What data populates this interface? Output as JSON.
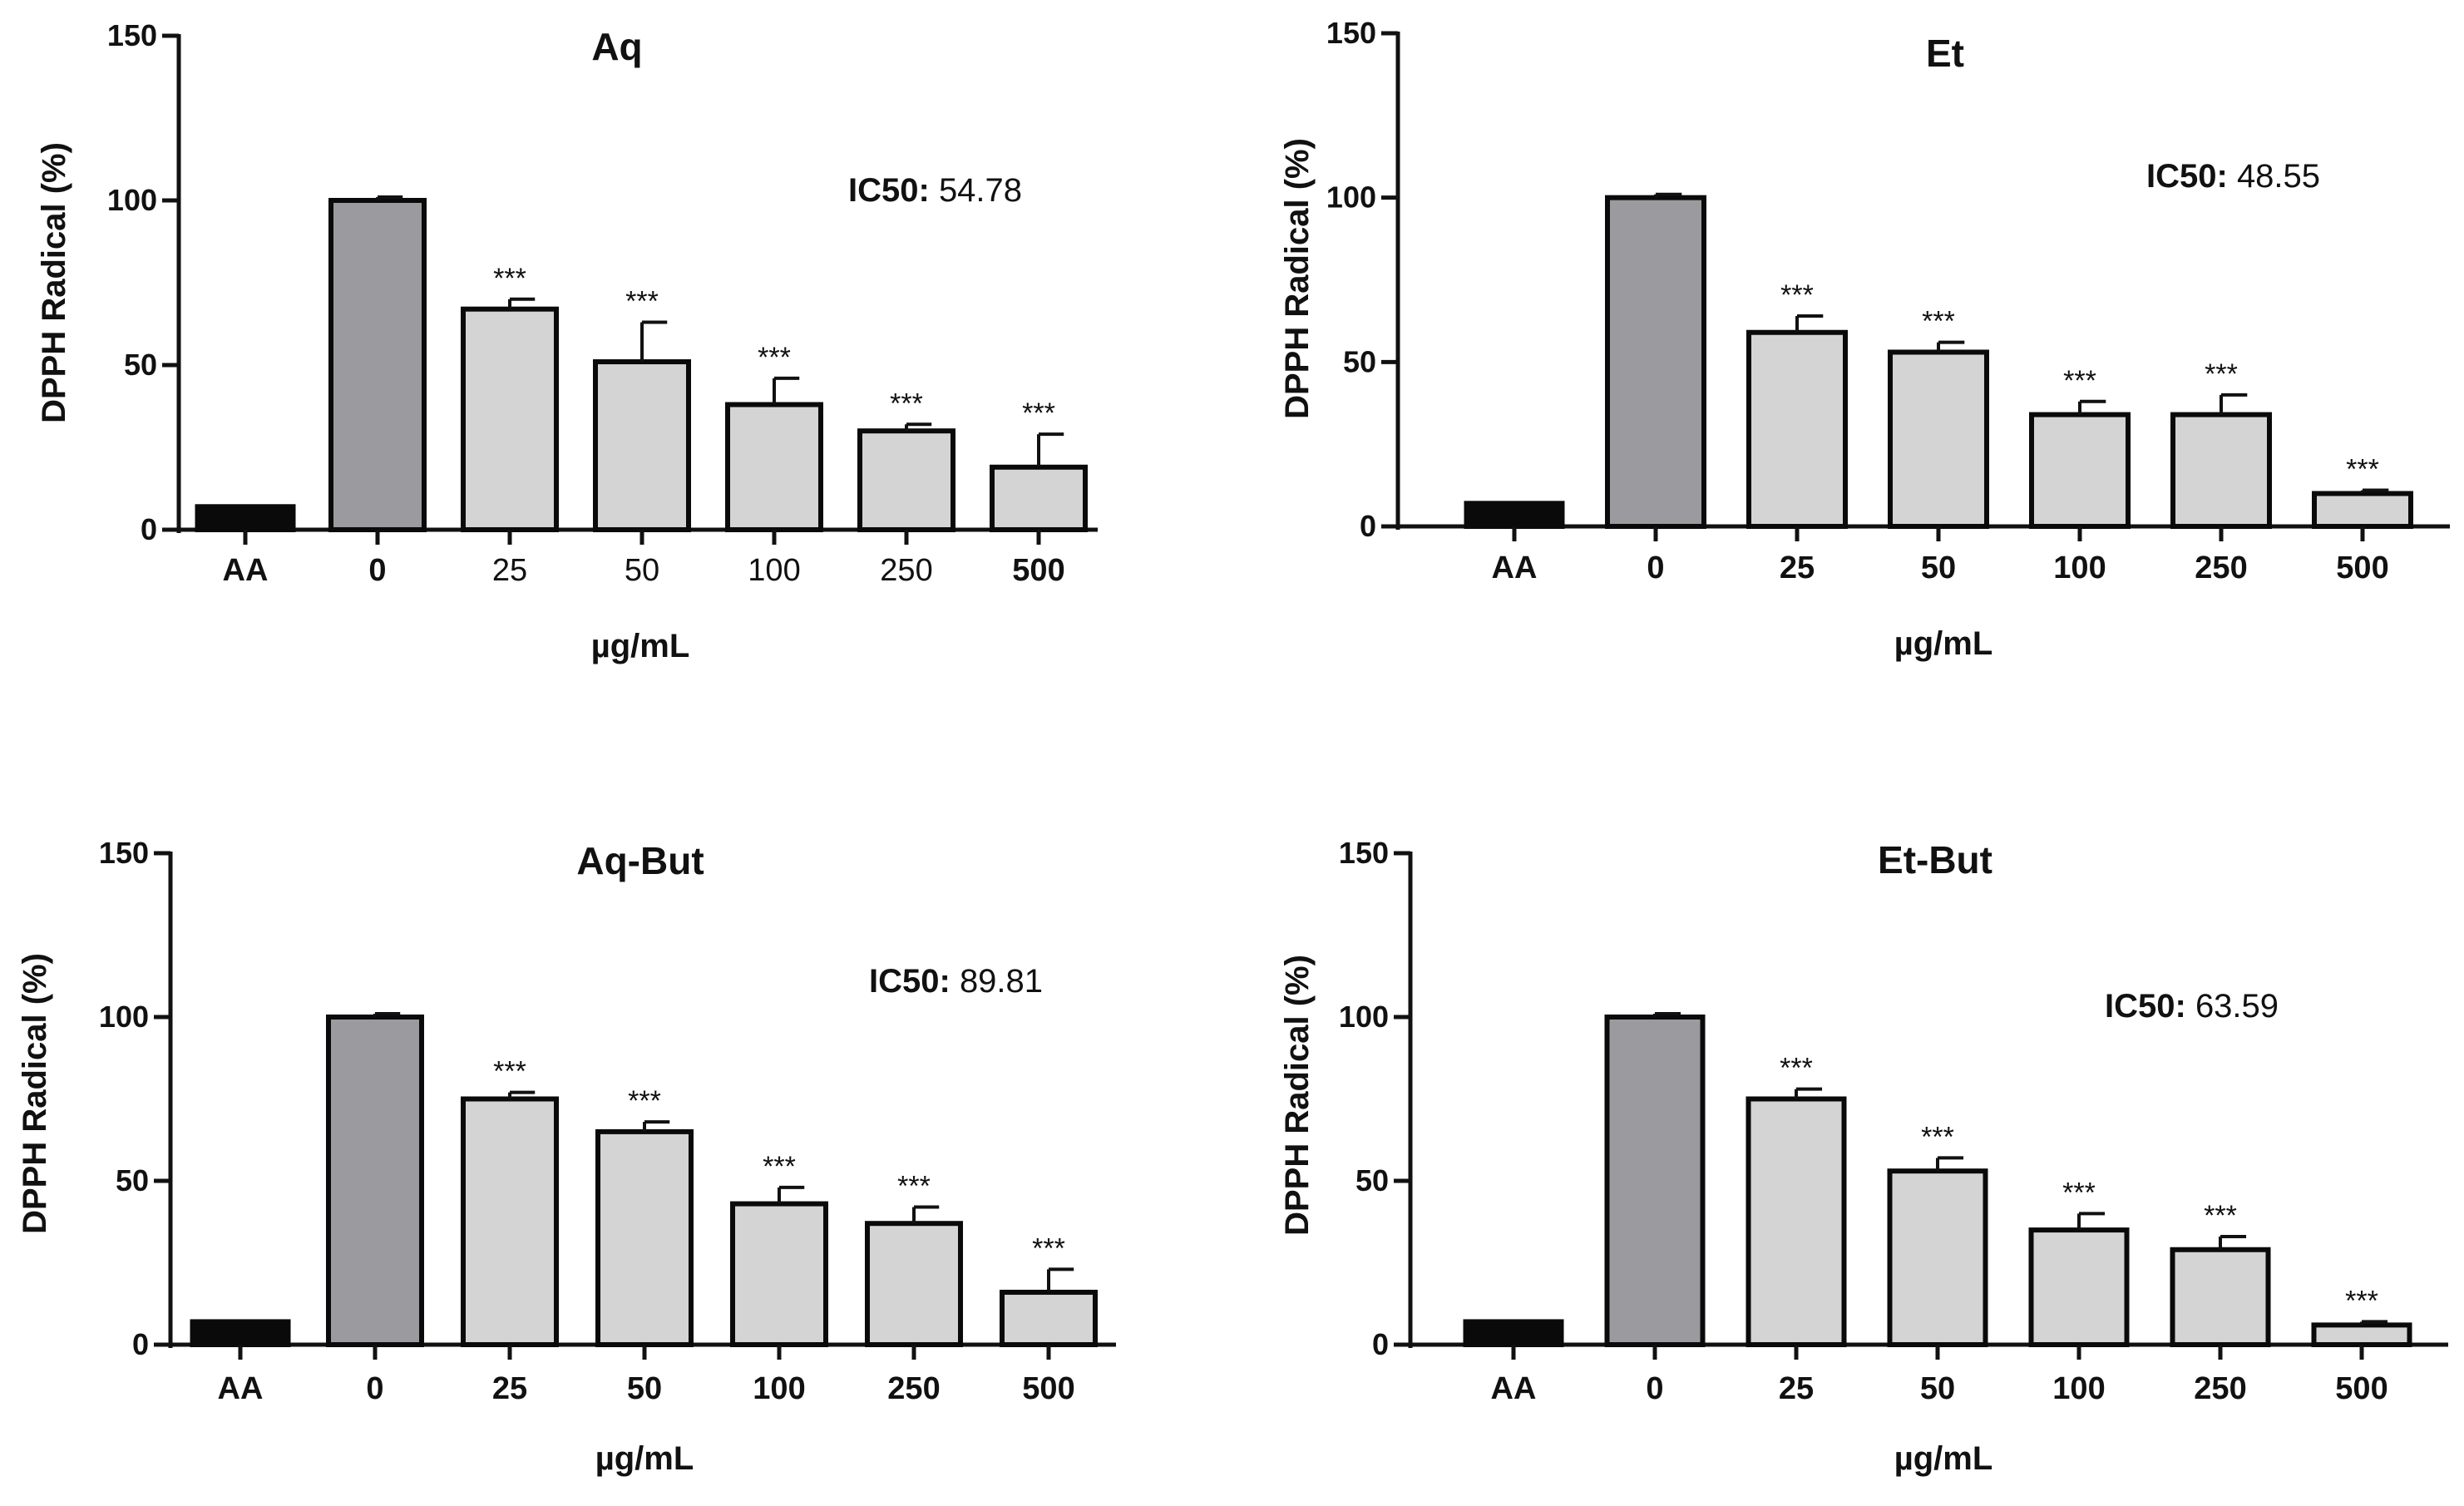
{
  "figure": {
    "ylabel": "DPPH Radical (%)",
    "xlabel": "µg/mL",
    "y_ticks": [
      0,
      50,
      100,
      150
    ],
    "ylim": [
      0,
      150
    ],
    "categories": [
      "AA",
      "0",
      "25",
      "50",
      "100",
      "250",
      "500"
    ],
    "bar_colors": [
      "#0a0a0a",
      "#9b9b9f",
      "#d4d4d4",
      "#d4d4d4",
      "#d4d4d4",
      "#d4d4d4",
      "#d4d4d4"
    ],
    "ic50_label": "IC50:"
  },
  "chart_data": [
    {
      "type": "bar",
      "title": "Aq",
      "xlabel": "µg/mL",
      "ylabel": "DPPH Radical (%)",
      "ylim": [
        0,
        150
      ],
      "categories": [
        "AA",
        "0",
        "25",
        "50",
        "100",
        "250",
        "500"
      ],
      "bold_ticks": [
        true,
        true,
        false,
        false,
        false,
        false,
        true
      ],
      "values": [
        7,
        100,
        67,
        51,
        38,
        30,
        19
      ],
      "errors": [
        0,
        1,
        3,
        12,
        8,
        2,
        10
      ],
      "significance": [
        "",
        "",
        "***",
        "***",
        "***",
        "***",
        "***"
      ],
      "ic50": "54.78"
    },
    {
      "type": "bar",
      "title": "Et",
      "xlabel": "µg/mL",
      "ylabel": "DPPH Radical (%)",
      "ylim": [
        0,
        150
      ],
      "categories": [
        "AA",
        "0",
        "25",
        "50",
        "100",
        "250",
        "500"
      ],
      "bold_ticks": [
        true,
        true,
        true,
        true,
        true,
        true,
        true
      ],
      "values": [
        7,
        100,
        59,
        53,
        34,
        34,
        10
      ],
      "errors": [
        0,
        1,
        5,
        3,
        4,
        6,
        1
      ],
      "significance": [
        "",
        "",
        "***",
        "***",
        "***",
        "***",
        "***"
      ],
      "ic50": "48.55"
    },
    {
      "type": "bar",
      "title": "Aq-But",
      "xlabel": "µg/mL",
      "ylabel": "DPPH Radical (%)",
      "ylim": [
        0,
        150
      ],
      "categories": [
        "AA",
        "0",
        "25",
        "50",
        "100",
        "250",
        "500"
      ],
      "bold_ticks": [
        true,
        true,
        true,
        true,
        true,
        true,
        true
      ],
      "values": [
        7,
        100,
        75,
        65,
        43,
        37,
        16
      ],
      "errors": [
        0,
        1,
        2,
        3,
        5,
        5,
        7
      ],
      "significance": [
        "",
        "",
        "***",
        "***",
        "***",
        "***",
        "***"
      ],
      "ic50": "89.81"
    },
    {
      "type": "bar",
      "title": "Et-But",
      "xlabel": "µg/mL",
      "ylabel": "DPPH Radical (%)",
      "ylim": [
        0,
        150
      ],
      "categories": [
        "AA",
        "0",
        "25",
        "50",
        "100",
        "250",
        "500"
      ],
      "bold_ticks": [
        true,
        true,
        true,
        true,
        true,
        true,
        true
      ],
      "values": [
        7,
        100,
        75,
        53,
        35,
        29,
        6
      ],
      "errors": [
        0,
        1,
        3,
        4,
        5,
        4,
        1
      ],
      "significance": [
        "",
        "",
        "***",
        "***",
        "***",
        "***",
        "***"
      ],
      "ic50": "63.59"
    }
  ]
}
